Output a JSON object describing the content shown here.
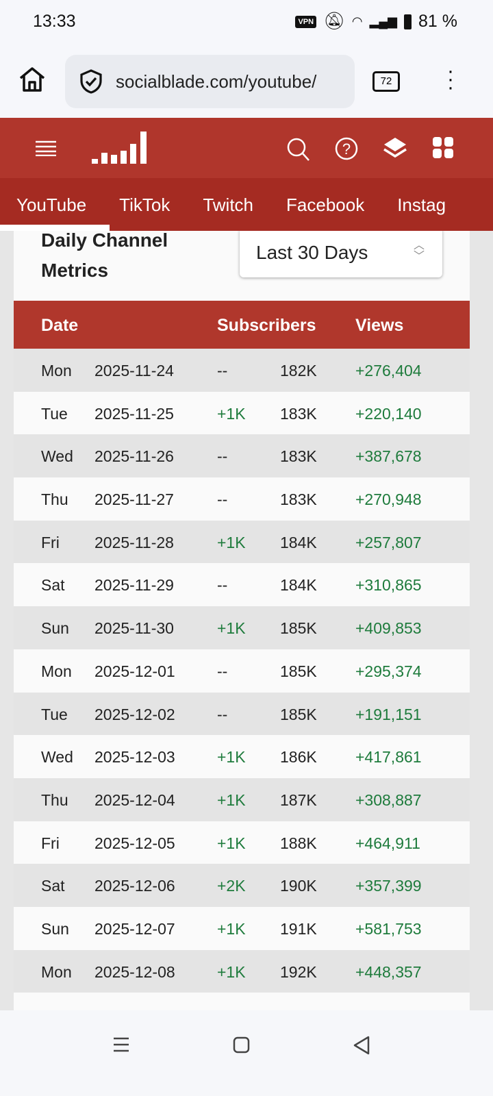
{
  "status_bar": {
    "time": "13:33",
    "vpn": "VPN",
    "battery": "81 %"
  },
  "browser": {
    "url_main": "socialblade.com/youtube/",
    "tab_count": "72"
  },
  "header": {
    "icons": [
      "menu-icon",
      "socialblade-logo",
      "search-icon",
      "help-icon",
      "layers-icon",
      "apps-icon"
    ]
  },
  "nav": {
    "tabs": [
      "YouTube",
      "TikTok",
      "Twitch",
      "Facebook",
      "Instag"
    ],
    "active": "YouTube"
  },
  "section": {
    "title": "Daily Channel Metrics",
    "range_select": "Last 30 Days"
  },
  "table": {
    "headers": {
      "date": "Date",
      "subscribers": "Subscribers",
      "views": "Views"
    },
    "rows": [
      {
        "day": "Mon",
        "date": "2025-11-24",
        "sub_change": "--",
        "subs": "182K",
        "views": "+276,404"
      },
      {
        "day": "Tue",
        "date": "2025-11-25",
        "sub_change": "+1K",
        "subs": "183K",
        "views": "+220,140"
      },
      {
        "day": "Wed",
        "date": "2025-11-26",
        "sub_change": "--",
        "subs": "183K",
        "views": "+387,678"
      },
      {
        "day": "Thu",
        "date": "2025-11-27",
        "sub_change": "--",
        "subs": "183K",
        "views": "+270,948"
      },
      {
        "day": "Fri",
        "date": "2025-11-28",
        "sub_change": "+1K",
        "subs": "184K",
        "views": "+257,807"
      },
      {
        "day": "Sat",
        "date": "2025-11-29",
        "sub_change": "--",
        "subs": "184K",
        "views": "+310,865"
      },
      {
        "day": "Sun",
        "date": "2025-11-30",
        "sub_change": "+1K",
        "subs": "185K",
        "views": "+409,853"
      },
      {
        "day": "Mon",
        "date": "2025-12-01",
        "sub_change": "--",
        "subs": "185K",
        "views": "+295,374"
      },
      {
        "day": "Tue",
        "date": "2025-12-02",
        "sub_change": "--",
        "subs": "185K",
        "views": "+191,151"
      },
      {
        "day": "Wed",
        "date": "2025-12-03",
        "sub_change": "+1K",
        "subs": "186K",
        "views": "+417,861"
      },
      {
        "day": "Thu",
        "date": "2025-12-04",
        "sub_change": "+1K",
        "subs": "187K",
        "views": "+308,887"
      },
      {
        "day": "Fri",
        "date": "2025-12-05",
        "sub_change": "+1K",
        "subs": "188K",
        "views": "+464,911"
      },
      {
        "day": "Sat",
        "date": "2025-12-06",
        "sub_change": "+2K",
        "subs": "190K",
        "views": "+357,399"
      },
      {
        "day": "Sun",
        "date": "2025-12-07",
        "sub_change": "+1K",
        "subs": "191K",
        "views": "+581,753"
      },
      {
        "day": "Mon",
        "date": "2025-12-08",
        "sub_change": "+1K",
        "subs": "192K",
        "views": "+448,357"
      }
    ]
  },
  "colors": {
    "brand": "#b0362c",
    "nav": "#a52b22",
    "positive": "#1e7b3c"
  }
}
